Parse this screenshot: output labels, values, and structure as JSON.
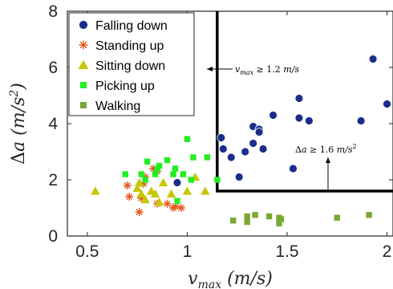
{
  "chart_data": {
    "type": "scatter",
    "xlabel": "v_max (m/s)",
    "ylabel": "Δa (m/s²)",
    "xlim": [
      0.4,
      2.03
    ],
    "ylim": [
      0,
      8
    ],
    "x_ticks": [
      "0.5",
      "1",
      "1.5",
      "2"
    ],
    "y_ticks": [
      "0",
      "2",
      "4",
      "6",
      "8"
    ],
    "grid": false,
    "legend": "top-left",
    "series": [
      {
        "name": "Falling down",
        "color": "#1a2e8a",
        "marker": "circle",
        "points": [
          [
            0.95,
            1.9
          ],
          [
            1.17,
            3.5
          ],
          [
            1.18,
            3.1
          ],
          [
            1.22,
            2.8
          ],
          [
            1.26,
            2.1
          ],
          [
            1.29,
            3.0
          ],
          [
            1.33,
            3.9
          ],
          [
            1.33,
            3.3
          ],
          [
            1.36,
            3.8
          ],
          [
            1.36,
            3.7
          ],
          [
            1.38,
            3.1
          ],
          [
            1.43,
            4.3
          ],
          [
            1.53,
            2.4
          ],
          [
            1.56,
            4.9
          ],
          [
            1.56,
            4.2
          ],
          [
            1.61,
            4.1
          ],
          [
            1.87,
            4.1
          ],
          [
            1.93,
            6.3
          ],
          [
            2.0,
            4.7
          ]
        ]
      },
      {
        "name": "Standing up",
        "color": "#e35b21",
        "marker": "asterisk",
        "points": [
          [
            0.7,
            1.8
          ],
          [
            0.71,
            1.4
          ],
          [
            0.76,
            0.85
          ],
          [
            0.77,
            1.35
          ],
          [
            0.78,
            1.85
          ],
          [
            0.79,
            2.1
          ],
          [
            0.83,
            2.4
          ],
          [
            0.85,
            2.3
          ],
          [
            0.85,
            1.15
          ],
          [
            0.9,
            1.15
          ],
          [
            0.93,
            1.0
          ],
          [
            0.94,
            1.05
          ],
          [
            0.97,
            1.0
          ]
        ]
      },
      {
        "name": "Sitting down",
        "color": "#c7c70a",
        "marker": "triangle",
        "points": [
          [
            0.54,
            1.6
          ],
          [
            0.75,
            1.7
          ],
          [
            0.76,
            1.9
          ],
          [
            0.77,
            1.5
          ],
          [
            0.79,
            1.3
          ],
          [
            0.82,
            1.6
          ],
          [
            0.84,
            1.5
          ],
          [
            0.86,
            1.2
          ],
          [
            0.88,
            1.9
          ],
          [
            0.92,
            1.5
          ],
          [
            1.0,
            1.6
          ],
          [
            1.04,
            2.1
          ],
          [
            1.09,
            1.6
          ]
        ]
      },
      {
        "name": "Picking up",
        "color": "#22ee22",
        "marker": "square",
        "points": [
          [
            0.69,
            2.2
          ],
          [
            0.77,
            2.2
          ],
          [
            0.79,
            2.0
          ],
          [
            0.8,
            2.65
          ],
          [
            0.84,
            2.2
          ],
          [
            0.85,
            2.4
          ],
          [
            0.86,
            2.5
          ],
          [
            0.9,
            2.7
          ],
          [
            0.93,
            2.2
          ],
          [
            0.94,
            2.4
          ],
          [
            0.95,
            1.25
          ],
          [
            0.98,
            2.2
          ],
          [
            1.0,
            3.45
          ],
          [
            1.02,
            2.0
          ],
          [
            1.03,
            2.8
          ],
          [
            1.1,
            2.8
          ],
          [
            1.15,
            2.0
          ]
        ]
      },
      {
        "name": "Walking",
        "color": "#78a832",
        "marker": "square",
        "points": [
          [
            1.23,
            0.55
          ],
          [
            1.3,
            0.5
          ],
          [
            1.3,
            0.7
          ],
          [
            1.34,
            0.75
          ],
          [
            1.41,
            0.7
          ],
          [
            1.46,
            0.65
          ],
          [
            1.46,
            0.45
          ],
          [
            1.47,
            0.6
          ],
          [
            1.75,
            0.65
          ],
          [
            1.91,
            0.75
          ]
        ]
      }
    ],
    "annotations": [
      {
        "text": "v_max ≥ 1.2 m/s"
      },
      {
        "text": "Δa ≥ 1.6 m/s²"
      }
    ],
    "threshold_region": {
      "x_from": 1.15,
      "y_from": 1.6
    }
  }
}
